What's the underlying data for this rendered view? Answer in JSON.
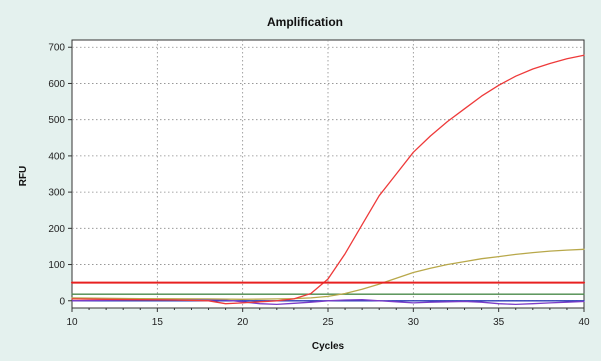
{
  "chart_data": {
    "type": "line",
    "title": "Amplification",
    "xlabel": "Cycles",
    "ylabel": "RFU",
    "xlim": [
      10,
      40
    ],
    "ylim": [
      -20,
      720
    ],
    "x_ticks": [
      10,
      15,
      20,
      25,
      30,
      35,
      40
    ],
    "x_tick_labels": [
      "10",
      "15",
      "20",
      "25",
      "30",
      "35",
      "40"
    ],
    "y_ticks": [
      0,
      100,
      200,
      300,
      400,
      500,
      600,
      700
    ],
    "y_tick_labels": [
      "0",
      "100",
      "200",
      "300",
      "400",
      "500",
      "600",
      "700"
    ],
    "grid": true,
    "legend": "none",
    "series": [
      {
        "color": "#ee3a3a",
        "x": [
          10,
          12,
          14,
          16,
          18,
          19,
          20,
          21,
          22,
          23,
          24,
          25,
          26,
          27,
          28,
          29,
          30,
          31,
          32,
          33,
          34,
          35,
          36,
          37,
          38,
          39,
          40
        ],
        "y": [
          5,
          4,
          3,
          2,
          0,
          -8,
          -6,
          -3,
          0,
          5,
          20,
          60,
          130,
          210,
          290,
          350,
          410,
          455,
          495,
          530,
          565,
          595,
          620,
          640,
          655,
          668,
          678
        ]
      },
      {
        "color": "#b8a84a",
        "x": [
          10,
          14,
          18,
          20,
          22,
          23,
          24,
          25,
          26,
          27,
          28,
          29,
          30,
          31,
          32,
          33,
          34,
          35,
          36,
          37,
          38,
          39,
          40
        ],
        "y": [
          8,
          6,
          5,
          4,
          5,
          6,
          8,
          12,
          20,
          32,
          46,
          62,
          78,
          90,
          100,
          108,
          116,
          122,
          128,
          133,
          137,
          140,
          142
        ]
      },
      {
        "color": "#7a3cc8",
        "x": [
          10,
          13,
          16,
          19,
          21,
          22,
          23,
          24,
          25,
          26,
          27,
          28,
          29,
          30,
          31,
          32,
          33,
          34,
          35,
          36,
          37,
          38,
          39,
          40
        ],
        "y": [
          0,
          2,
          4,
          2,
          -8,
          -10,
          -7,
          -4,
          0,
          2,
          3,
          0,
          -3,
          -6,
          -4,
          -3,
          -2,
          -4,
          -8,
          -10,
          -8,
          -6,
          -4,
          -2
        ]
      },
      {
        "color": "#4a8a4a",
        "x": [
          10,
          15,
          20,
          25,
          30,
          35,
          40
        ],
        "y": [
          18,
          18,
          18,
          18,
          18,
          18,
          18
        ]
      },
      {
        "color": "#e82020",
        "x": [
          10,
          40
        ],
        "y": [
          50,
          50
        ]
      },
      {
        "color": "#2a3ab8",
        "x": [
          10,
          40
        ],
        "y": [
          0,
          0
        ]
      }
    ]
  }
}
